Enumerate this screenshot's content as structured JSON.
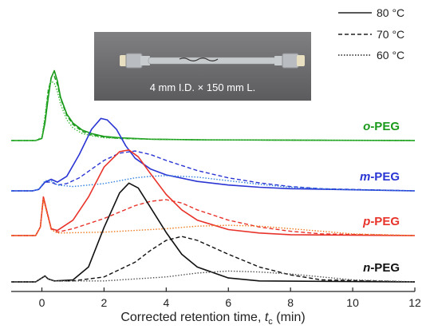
{
  "chart_data": {
    "type": "line",
    "xlabel": "Corrected retention time, ",
    "xlabel_var": "t",
    "xlabel_sub": "c",
    "xlabel_unit": " (min)",
    "ylabel": "",
    "xlim": [
      -1,
      12
    ],
    "xticks": [
      "0",
      "2",
      "4",
      "6",
      "8",
      "10",
      "12"
    ],
    "legend": [
      {
        "label": "80 °C",
        "dash": "solid"
      },
      {
        "label": "70 °C",
        "dash": "dashed"
      },
      {
        "label": "60 °C",
        "dash": "dotted"
      }
    ],
    "legend_position": "top-right",
    "photo_caption": "4 mm I.D. × 150 mm L.",
    "groups": [
      {
        "label_prefix": "o",
        "label_suffix": "-PEG",
        "color": "#1a9a1a",
        "lightcolor": "#3dbb3d",
        "height": 0.53,
        "curves": [
          {
            "temp": "80 °C",
            "x": [
              -1,
              -0.2,
              0,
              0.1,
              0.2,
              0.3,
              0.4,
              0.5,
              0.6,
              0.8,
              1.0,
              1.3,
              1.6,
              2.0,
              2.5,
              3.5,
              5,
              12
            ],
            "y": [
              0,
              0,
              0.03,
              0.25,
              0.6,
              0.9,
              1.0,
              0.85,
              0.62,
              0.38,
              0.25,
              0.15,
              0.1,
              0.06,
              0.04,
              0.02,
              0.01,
              0
            ]
          },
          {
            "temp": "70 °C",
            "x": [
              -1,
              -0.2,
              0,
              0.1,
              0.2,
              0.3,
              0.4,
              0.5,
              0.6,
              0.8,
              1.0,
              1.3,
              1.6,
              2.0,
              2.5,
              3.5,
              5,
              12
            ],
            "y": [
              0,
              0,
              0.03,
              0.3,
              0.7,
              0.9,
              0.92,
              0.8,
              0.6,
              0.36,
              0.23,
              0.13,
              0.08,
              0.05,
              0.03,
              0.02,
              0.01,
              0
            ]
          },
          {
            "temp": "60 °C",
            "x": [
              -1,
              -0.2,
              0,
              0.1,
              0.2,
              0.3,
              0.4,
              0.5,
              0.6,
              0.8,
              1.0,
              1.3,
              1.6,
              2.0,
              2.5,
              3.5,
              5,
              12
            ],
            "y": [
              0,
              0,
              0.05,
              0.35,
              0.72,
              0.85,
              0.82,
              0.7,
              0.52,
              0.3,
              0.18,
              0.1,
              0.07,
              0.04,
              0.03,
              0.02,
              0.01,
              0
            ]
          }
        ]
      },
      {
        "label_prefix": "m",
        "label_suffix": "-PEG",
        "color": "#2a35d4",
        "lightcolor": "#2f7fe0",
        "height": 0.55,
        "curves": [
          {
            "temp": "80 °C",
            "x": [
              -1,
              -0.3,
              -0.1,
              0.1,
              0.3,
              0.5,
              0.8,
              1.2,
              1.6,
              1.9,
              2.1,
              2.4,
              2.7,
              3.0,
              3.5,
              4.0,
              5.0,
              6.0,
              7.0,
              8.0,
              12
            ],
            "y": [
              0,
              0,
              0.02,
              0.12,
              0.16,
              0.12,
              0.2,
              0.5,
              0.85,
              1.0,
              0.98,
              0.85,
              0.62,
              0.45,
              0.3,
              0.22,
              0.13,
              0.08,
              0.05,
              0.03,
              0
            ]
          },
          {
            "temp": "70 °C",
            "x": [
              -1,
              -0.3,
              -0.1,
              0.1,
              0.3,
              0.5,
              0.8,
              1.2,
              1.6,
              2.0,
              2.5,
              3.0,
              3.5,
              4.0,
              5.0,
              6.0,
              7.0,
              8.0,
              9.0,
              12
            ],
            "y": [
              0,
              0,
              0.02,
              0.12,
              0.12,
              0.08,
              0.1,
              0.18,
              0.3,
              0.42,
              0.52,
              0.55,
              0.5,
              0.42,
              0.28,
              0.18,
              0.11,
              0.06,
              0.03,
              0
            ]
          },
          {
            "temp": "60 °C",
            "x": [
              -1,
              -0.3,
              -0.1,
              0.1,
              0.3,
              0.5,
              1.0,
              2.0,
              3.0,
              3.5,
              4.0,
              5.0,
              6.0,
              7.0,
              8.0,
              9.5,
              12
            ],
            "y": [
              0,
              0,
              0.02,
              0.14,
              0.14,
              0.08,
              0.06,
              0.1,
              0.18,
              0.2,
              0.21,
              0.19,
              0.14,
              0.09,
              0.05,
              0.02,
              0
            ]
          }
        ]
      },
      {
        "label_prefix": "p",
        "label_suffix": "-PEG",
        "color": "#e8332a",
        "lightcolor": "#f07a20",
        "height": 0.65,
        "curves": [
          {
            "temp": "80 °C",
            "x": [
              -1,
              -0.2,
              -0.05,
              0.05,
              0.15,
              0.3,
              0.5,
              1.0,
              1.5,
              2.0,
              2.5,
              2.8,
              3.1,
              3.5,
              4.0,
              4.5,
              5.0,
              6.0,
              7.0,
              8.0,
              12
            ],
            "y": [
              0,
              0,
              0.1,
              0.45,
              0.3,
              0.08,
              0.06,
              0.18,
              0.45,
              0.8,
              0.98,
              1.0,
              0.92,
              0.72,
              0.48,
              0.3,
              0.18,
              0.07,
              0.03,
              0.01,
              0
            ]
          },
          {
            "temp": "70 °C",
            "x": [
              -1,
              -0.2,
              -0.05,
              0.05,
              0.15,
              0.3,
              0.5,
              1.0,
              2.0,
              3.0,
              3.5,
              4.0,
              4.5,
              5.0,
              6.0,
              7.0,
              8.0,
              9.0,
              12
            ],
            "y": [
              0,
              0,
              0.1,
              0.45,
              0.3,
              0.08,
              0.04,
              0.08,
              0.2,
              0.35,
              0.4,
              0.42,
              0.38,
              0.3,
              0.18,
              0.1,
              0.05,
              0.02,
              0
            ]
          },
          {
            "temp": "60 °C",
            "x": [
              -1,
              -0.2,
              -0.05,
              0.05,
              0.15,
              0.3,
              0.5,
              2.0,
              4.0,
              5.0,
              6.0,
              7.0,
              8.0,
              9.0,
              10.0,
              12
            ],
            "y": [
              0,
              0,
              0.1,
              0.42,
              0.28,
              0.07,
              0.03,
              0.04,
              0.08,
              0.11,
              0.12,
              0.11,
              0.08,
              0.05,
              0.02,
              0
            ]
          }
        ]
      },
      {
        "label_prefix": "n",
        "label_suffix": "-PEG",
        "color": "#111111",
        "lightcolor": "#555555",
        "height": 0.75,
        "curves": [
          {
            "temp": "80 °C",
            "x": [
              -1,
              -0.2,
              0,
              0.1,
              0.2,
              0.4,
              1.0,
              1.5,
              2.0,
              2.5,
              2.8,
              3.1,
              3.5,
              4.0,
              4.5,
              5.0,
              6.0,
              7.0,
              12
            ],
            "y": [
              0,
              0,
              0.04,
              0.06,
              0.03,
              0.01,
              0.02,
              0.15,
              0.55,
              0.9,
              1.0,
              0.95,
              0.75,
              0.5,
              0.28,
              0.15,
              0.04,
              0.01,
              0
            ]
          },
          {
            "temp": "70 °C",
            "x": [
              -1,
              -0.2,
              0,
              0.1,
              0.2,
              0.4,
              1.0,
              2.0,
              3.0,
              3.5,
              4.0,
              4.5,
              5.0,
              6.0,
              7.0,
              8.0,
              9.0,
              12
            ],
            "y": [
              0,
              0,
              0.04,
              0.06,
              0.03,
              0.01,
              0.01,
              0.05,
              0.2,
              0.32,
              0.42,
              0.46,
              0.42,
              0.28,
              0.15,
              0.07,
              0.02,
              0
            ]
          },
          {
            "temp": "60 °C",
            "x": [
              -1,
              -0.2,
              0,
              0.1,
              0.2,
              0.4,
              2.0,
              4.0,
              5.0,
              6.0,
              7.0,
              8.0,
              9.0,
              10.0,
              12
            ],
            "y": [
              0,
              0,
              0.04,
              0.06,
              0.03,
              0.01,
              0.01,
              0.05,
              0.09,
              0.11,
              0.1,
              0.08,
              0.05,
              0.02,
              0
            ]
          }
        ]
      }
    ]
  }
}
